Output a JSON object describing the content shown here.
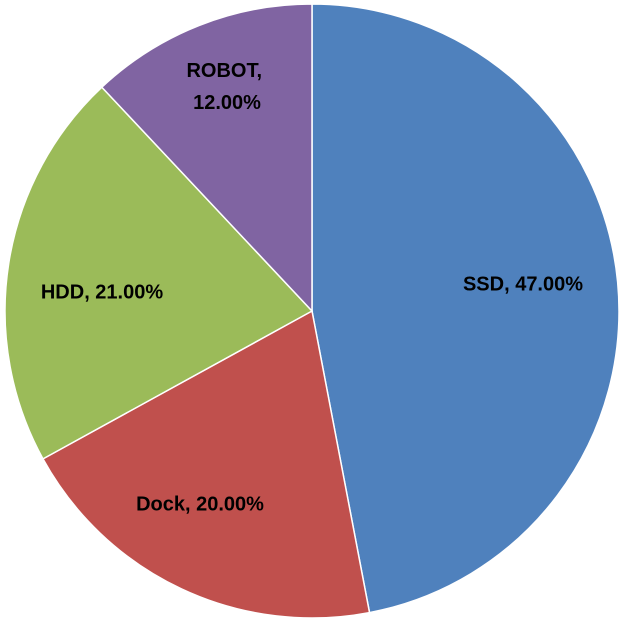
{
  "chart_data": {
    "type": "pie",
    "categories": [
      "SSD",
      "Dock",
      "HDD",
      "ROBOT"
    ],
    "values": [
      47,
      20,
      21,
      12
    ],
    "value_labels": [
      "SSD, 47.00%",
      "Dock, 20.00%",
      "HDD, 21.00%",
      "ROBOT, 12.00%"
    ],
    "colors": [
      "#4f81bd",
      "#c0504d",
      "#9bbb59",
      "#8064a2"
    ]
  }
}
